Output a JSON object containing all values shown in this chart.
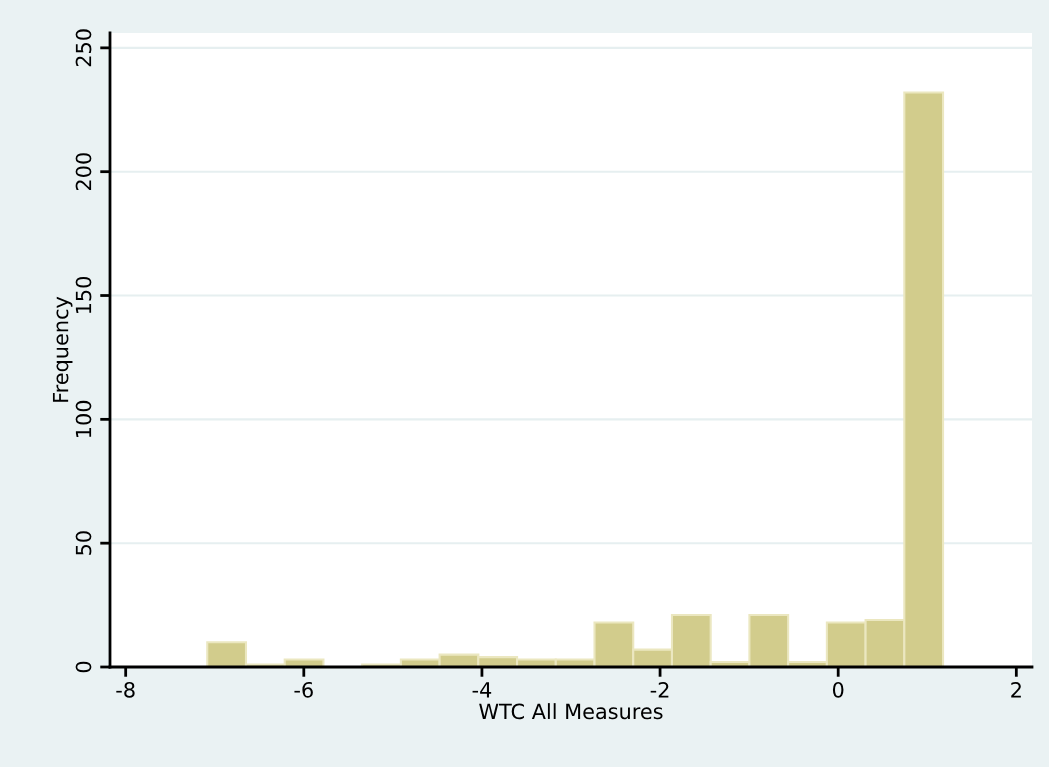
{
  "chart_data": {
    "type": "histogram",
    "xlabel": "WTC All Measures",
    "ylabel": "Frequency",
    "bins": [
      -7.084,
      -6.6492,
      -6.2144,
      -5.7796,
      -5.3448,
      -4.91,
      -4.4752,
      -4.0404,
      -3.6056,
      -3.1708,
      -2.736,
      -2.3012,
      -1.8664,
      -1.4316,
      -0.9968,
      -0.562,
      -0.1272,
      0.3076,
      0.7424,
      1.1772
    ],
    "values": [
      10,
      1,
      3,
      0,
      1,
      3,
      5,
      4,
      3,
      3,
      18,
      7,
      21,
      2,
      21,
      2,
      18,
      19,
      232
    ],
    "color": "#d2cc8c",
    "xlim": [
      -8.176,
      2.176
    ],
    "xticks": [
      -8,
      -6,
      -4,
      -2,
      0,
      2
    ],
    "ylim": [
      0,
      256
    ],
    "yticks": [
      0,
      50,
      100,
      150,
      200,
      250
    ],
    "grid": "y"
  }
}
